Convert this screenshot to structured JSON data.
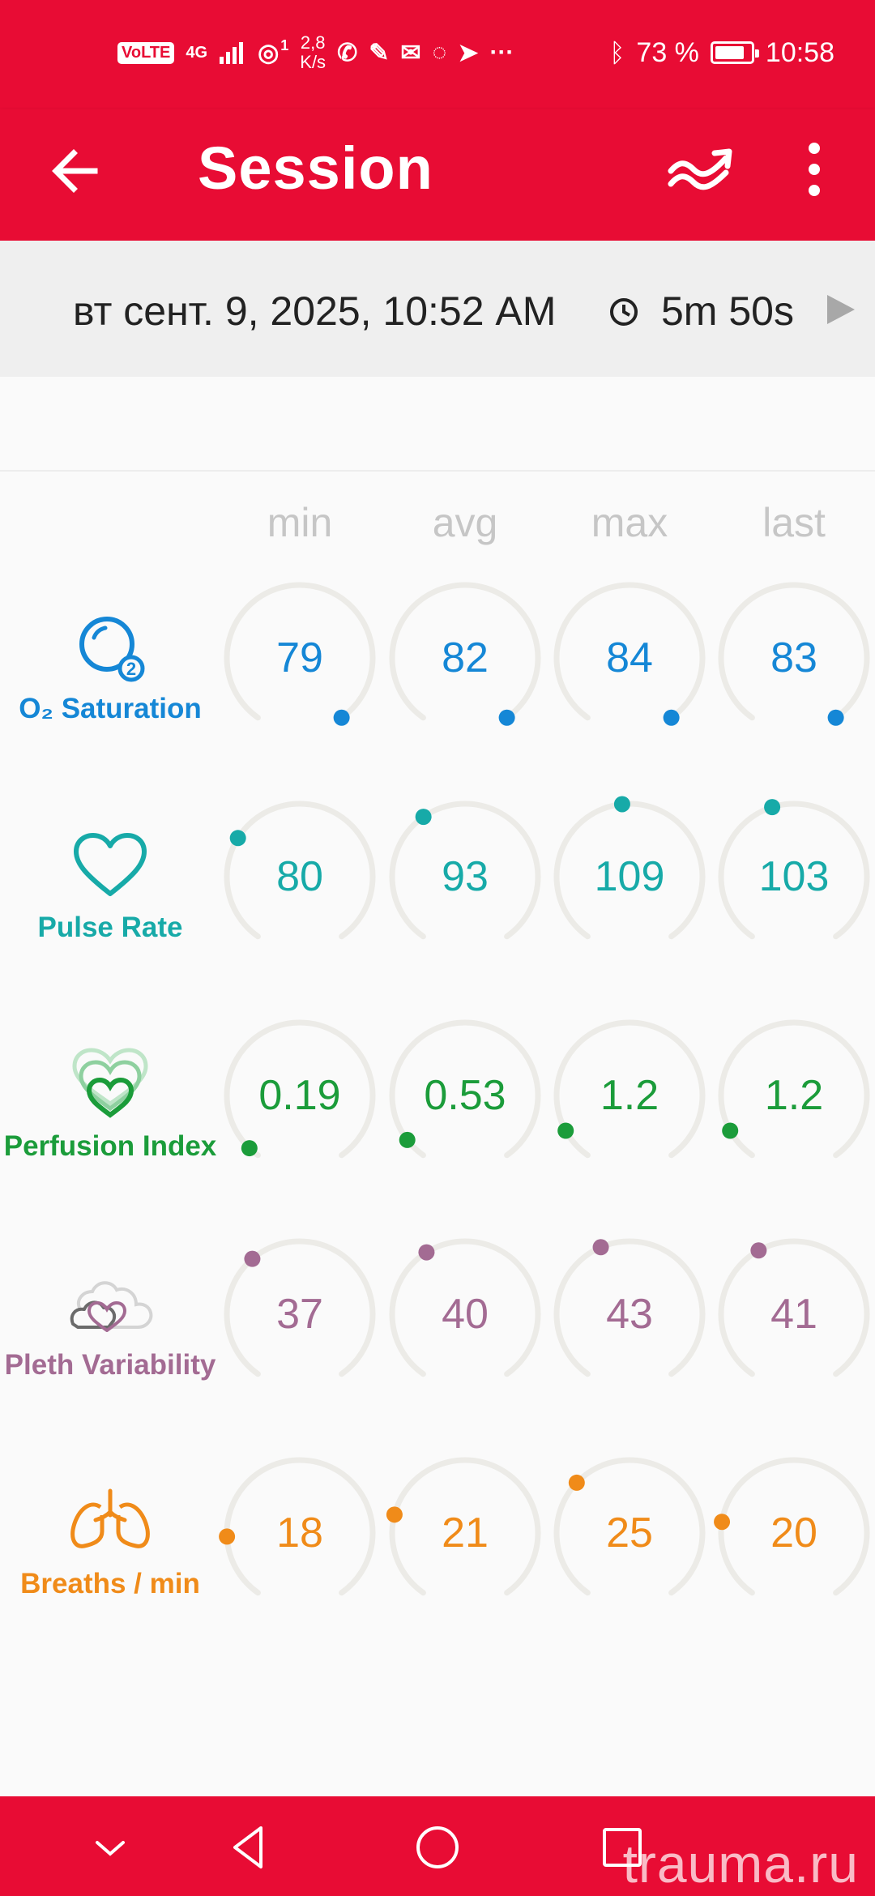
{
  "status_bar": {
    "volte": "VoLTE",
    "network": "4G",
    "hotspot_badge": "1",
    "speed_value": "2,8",
    "speed_unit": "K/s",
    "battery_percent": "73 %",
    "battery_level": 0.73,
    "time": "10:58"
  },
  "app_bar": {
    "title": "Session"
  },
  "session": {
    "date": "вт сент. 9, 2025, 10:52 AM",
    "duration": "5m 50s"
  },
  "columns": [
    "min",
    "avg",
    "max",
    "last"
  ],
  "metrics": [
    {
      "label": "O₂ Saturation",
      "icon": "o2-saturation-icon",
      "color": "#1587d6",
      "values": [
        "79",
        "82",
        "84",
        "83"
      ],
      "indicator_fraction": [
        1.0,
        1.0,
        1.0,
        1.0
      ]
    },
    {
      "label": "Pulse Rate",
      "icon": "heart-icon",
      "color": "#17aaa8",
      "values": [
        "80",
        "93",
        "109",
        "103"
      ],
      "indicator_fraction": [
        0.3,
        0.38,
        0.48,
        0.44
      ]
    },
    {
      "label": "Perfusion Index",
      "icon": "perfusion-hearts-icon",
      "color": "#1b9c3a",
      "values": [
        "0.19",
        "0.53",
        "1.2",
        "1.2"
      ],
      "indicator_fraction": [
        0.03,
        0.06,
        0.09,
        0.09
      ]
    },
    {
      "label": "Pleth Variability",
      "icon": "pleth-variability-icon",
      "color": "#a36b93",
      "values": [
        "37",
        "40",
        "43",
        "41"
      ],
      "indicator_fraction": [
        0.36,
        0.39,
        0.42,
        0.4
      ]
    },
    {
      "label": "Breaths / min",
      "icon": "lungs-icon",
      "color": "#f08b19",
      "values": [
        "18",
        "21",
        "25",
        "20"
      ],
      "indicator_fraction": [
        0.18,
        0.24,
        0.34,
        0.22
      ]
    }
  ],
  "watermark": "trauma.ru",
  "colors": {
    "brand_red": "#e80c34",
    "track": "#ecebe7"
  }
}
